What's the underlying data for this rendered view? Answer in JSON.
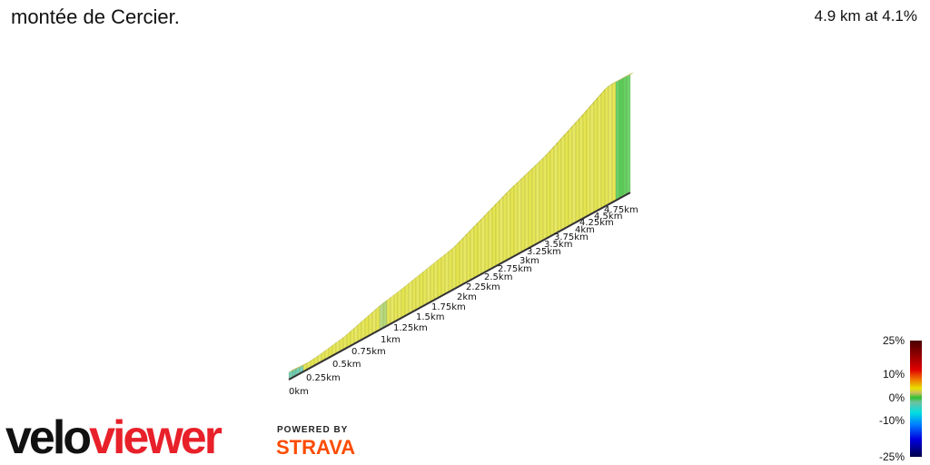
{
  "header": {
    "title": "montée de Cercier.",
    "summary": "4.9 km at 4.1%"
  },
  "profile": {
    "distance_labels": [
      "0km",
      "0.25km",
      "0.5km",
      "0.75km",
      "1km",
      "1.25km",
      "1.5km",
      "1.75km",
      "2km",
      "2.25km",
      "2.5km",
      "2.75km",
      "3km",
      "3.25km",
      "3.5km",
      "3.75km",
      "4km",
      "4.25km",
      "4.5km",
      "4.75km"
    ],
    "colors": {
      "climb": "#e0e030",
      "flat": "#3cc43c",
      "start": "#50c0a0"
    }
  },
  "legend": {
    "labels": [
      "25%",
      "10%",
      "0%",
      "-10%",
      "-25%"
    ]
  },
  "branding": {
    "logo_part1": "velo",
    "logo_part2": "viewer",
    "powered_by": "POWERED BY",
    "strava": "STRAVA"
  }
}
